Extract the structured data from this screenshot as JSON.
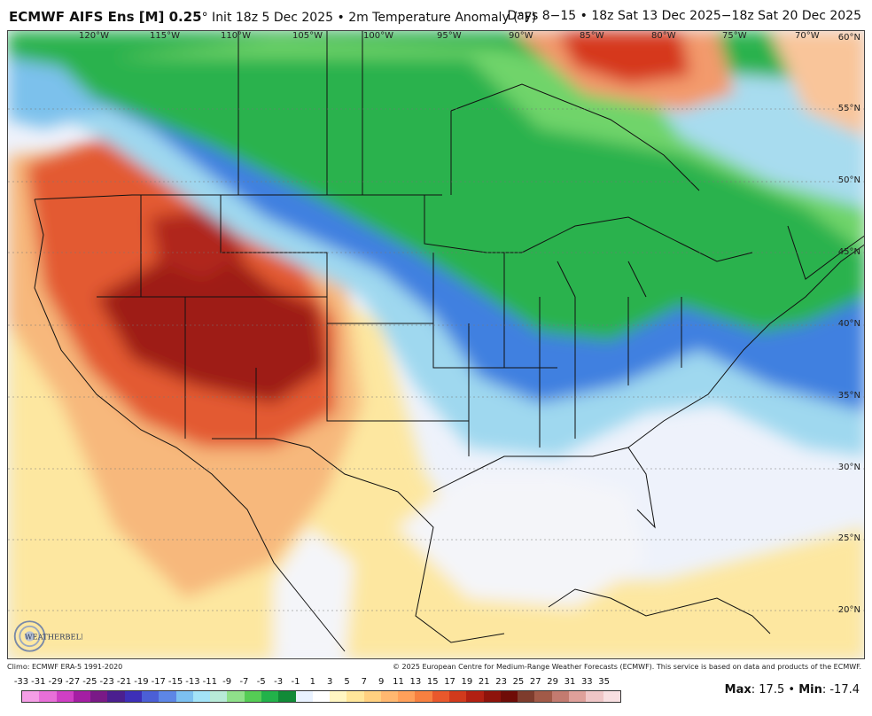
{
  "header": {
    "model": "ECMWF AIFS Ens [M] 0.25",
    "init": "° Init 18z 5 Dec 2025 • 2m Temperature Anomaly (°F)",
    "period": "Days 8−15 • 18z Sat 13 Dec 2025−18z Sat 20 Dec 2025"
  },
  "map": {
    "lon_labels": [
      "120°W",
      "115°W",
      "110°W",
      "105°W",
      "100°W",
      "95°W",
      "90°W",
      "85°W",
      "80°W",
      "75°W",
      "70°W"
    ],
    "lat_labels": [
      "60°N",
      "55°N",
      "50°N",
      "45°N",
      "40°N",
      "35°N",
      "30°N",
      "25°N",
      "20°N"
    ],
    "colors": {
      "warm_strong": "#8f1a10",
      "warm": "#e0562f",
      "warm_light": "#f6b27a",
      "neutral_warm": "#fde9a8",
      "neutral": "#f4f4f8",
      "cool_light": "#a8dcef",
      "cool": "#3f7fe0",
      "green": "#22b24a",
      "green_light": "#6fd46b",
      "ocean_pale": "#e8eefc"
    },
    "logo_text": "WEATHERBELL"
  },
  "credits": {
    "climo": "Climo: ECMWF ERA-5 1991-2020",
    "copyright": "© 2025 European Centre for Medium-Range Weather Forecasts (ECMWF). This service is based on data and products of the ECMWF."
  },
  "colorbar": {
    "labels": [
      "-33",
      "-31",
      "-29",
      "-27",
      "-25",
      "-23",
      "-21",
      "-19",
      "-17",
      "-15",
      "-13",
      "-11",
      "-9",
      "-7",
      "-5",
      "-3",
      "-1",
      "1",
      "3",
      "5",
      "7",
      "9",
      "11",
      "13",
      "15",
      "17",
      "19",
      "21",
      "23",
      "25",
      "27",
      "29",
      "31",
      "33",
      "35"
    ],
    "colors": [
      "#f59ee6",
      "#e86fd8",
      "#cf3fc4",
      "#a41ea3",
      "#7a1a87",
      "#4b1f8f",
      "#3d2fb8",
      "#4b5fd6",
      "#5d86e6",
      "#7cc0f0",
      "#a3e3f7",
      "#b8ead8",
      "#8fe08a",
      "#55cc55",
      "#22b24a",
      "#118a37",
      "#e9f2ff",
      "#ffffff",
      "#fff6c2",
      "#ffe69a",
      "#ffd080",
      "#ffb870",
      "#ffa05a",
      "#f78040",
      "#e9582c",
      "#d23a1c",
      "#b22012",
      "#8e130b",
      "#6f0c07",
      "#7e3c2d",
      "#a25a48",
      "#c37b70",
      "#dea09a",
      "#efc6c7",
      "#f8dfe1"
    ]
  },
  "stats": {
    "max_label": "Max",
    "max_value": "17.5",
    "sep": "•",
    "min_label": "Min",
    "min_value": "-17.4"
  }
}
